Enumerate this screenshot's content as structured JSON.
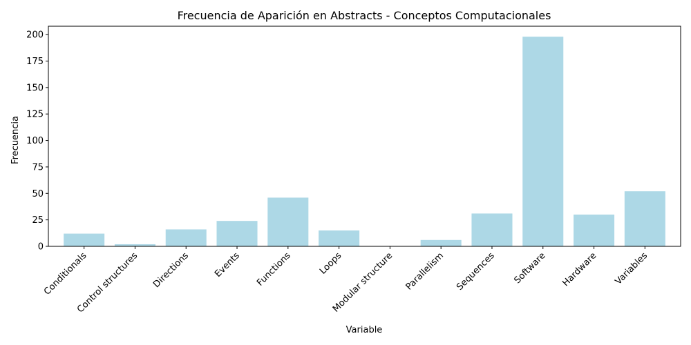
{
  "chart_data": {
    "type": "bar",
    "title": "Frecuencia de Aparición en Abstracts - Conceptos Computacionales",
    "xlabel": "Variable",
    "ylabel": "Frecuencia",
    "categories": [
      "Conditionals",
      "Control structures",
      "Directions",
      "Events",
      "Functions",
      "Loops",
      "Modular structure",
      "Parallelism",
      "Sequences",
      "Software",
      "Hardware",
      "Variables"
    ],
    "values": [
      12,
      2,
      16,
      24,
      46,
      15,
      0,
      6,
      31,
      198,
      30,
      52
    ],
    "ylim": [
      0,
      207.9
    ],
    "yticks": [
      0,
      25,
      50,
      75,
      100,
      125,
      150,
      175,
      200
    ],
    "bar_color": "#add8e6",
    "grid": false,
    "legend": false
  }
}
